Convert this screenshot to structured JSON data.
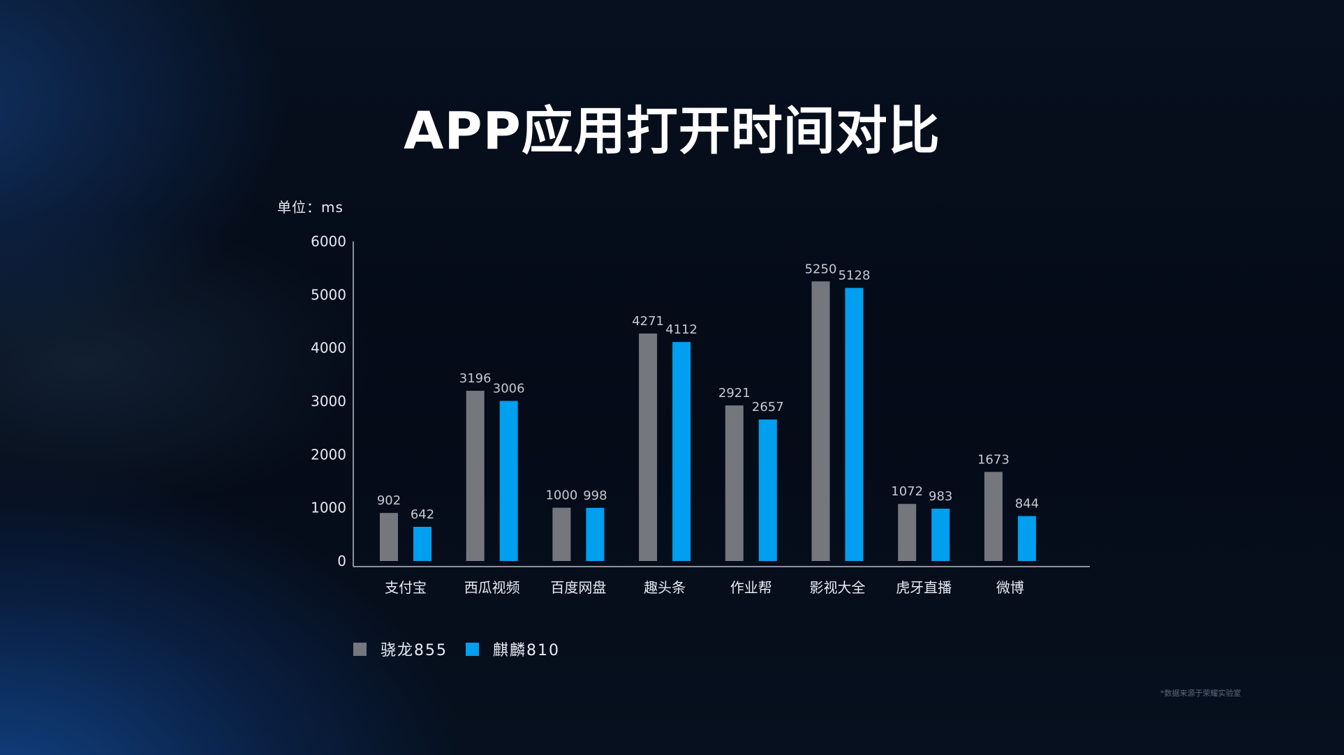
{
  "chart_data": {
    "type": "bar",
    "title": "APP应用打开时间对比",
    "unit_label": "单位：ms",
    "categories": [
      "支付宝",
      "西瓜视频",
      "百度网盘",
      "趣头条",
      "作业帮",
      "影视大全",
      "虎牙直播",
      "微博"
    ],
    "series": [
      {
        "name": "骁龙855",
        "color": "#75777f",
        "values": [
          902,
          3196,
          1000,
          4271,
          2921,
          5250,
          1072,
          1673
        ],
        "labels": [
          "902",
          "3196",
          "1000",
          "4271",
          "2921",
          "5250",
          "1072",
          "1673"
        ]
      },
      {
        "name": "麒麟810",
        "color": "#009ff0",
        "values": [
          642,
          3006,
          998,
          4112,
          2657,
          5128,
          983,
          844
        ],
        "labels": [
          "642",
          "3006",
          "998",
          "4112",
          "2657",
          "5128",
          "983",
          "844"
        ]
      }
    ],
    "ylim": [
      0,
      6000
    ],
    "yticks": [
      0,
      1000,
      2000,
      3000,
      4000,
      5000,
      6000
    ],
    "ytick_labels": [
      "0",
      "1000",
      "2000",
      "3000",
      "4000",
      "5000",
      "6000"
    ],
    "grid": false,
    "legend_position": "bottom-left"
  },
  "footnote": "*数据来源于荣耀实验室",
  "colors": {
    "axis": "#b5bfca",
    "tick_text": "#e6ecf3",
    "value_label": "#c4cad2"
  }
}
